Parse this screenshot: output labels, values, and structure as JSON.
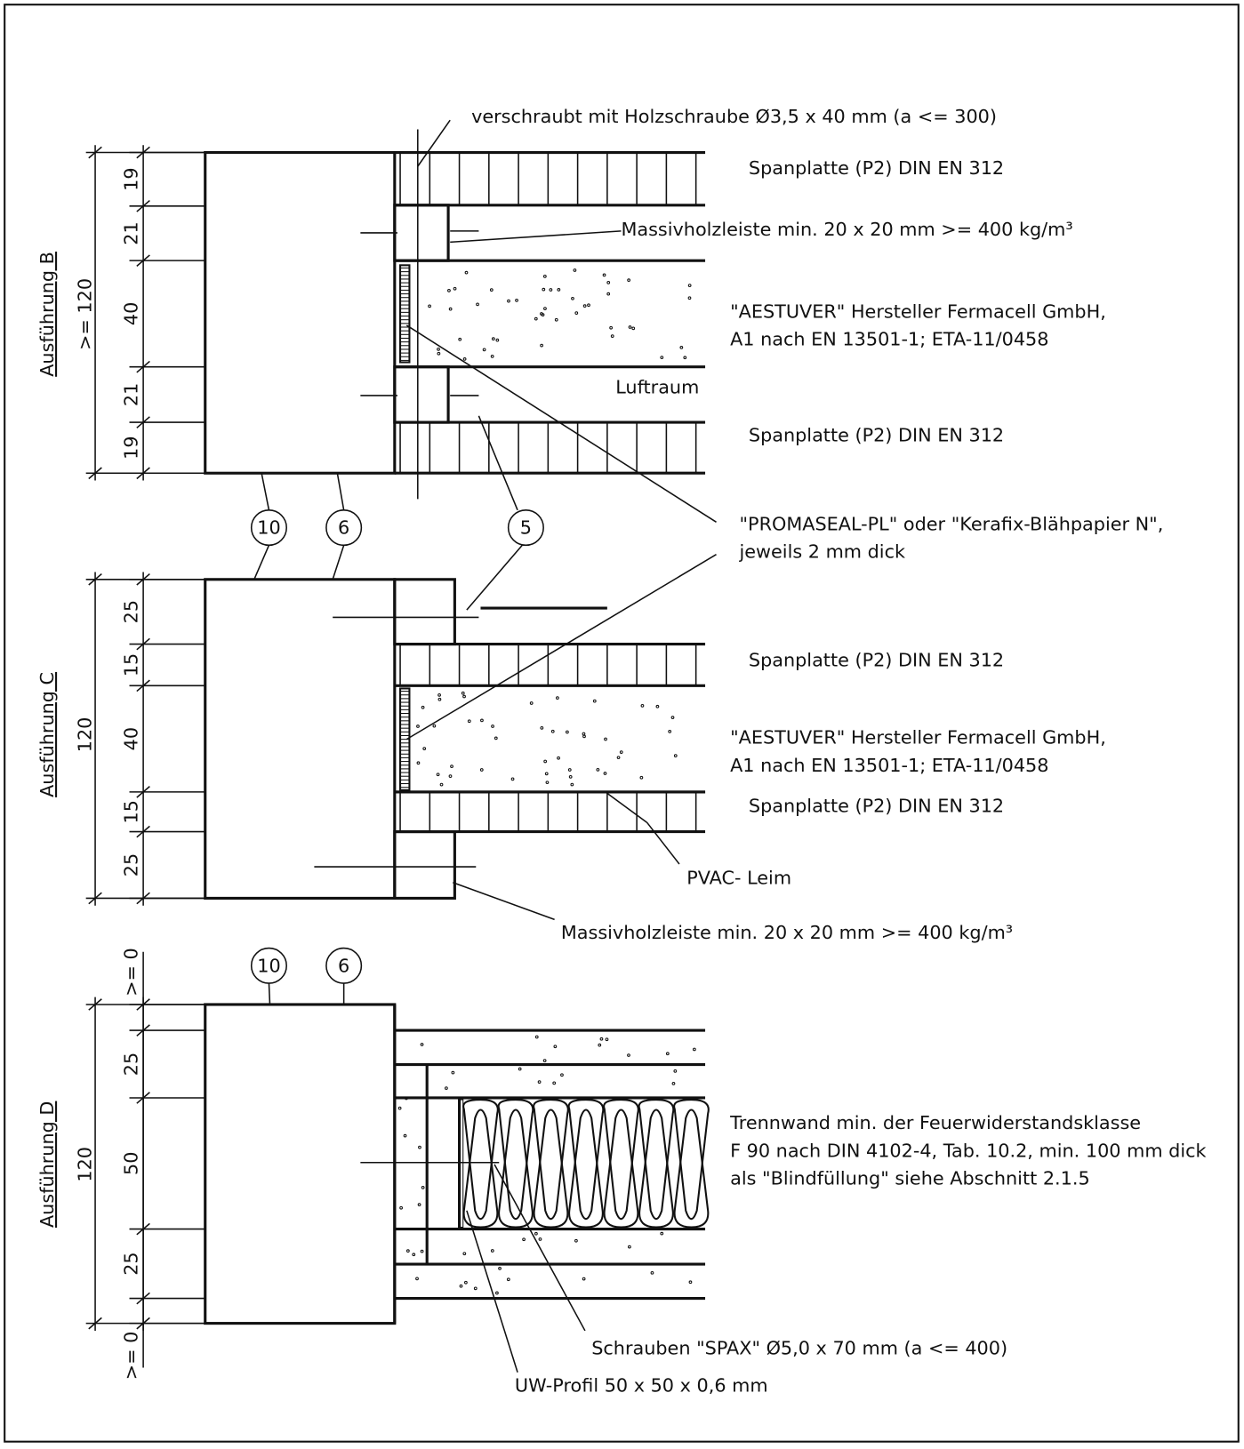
{
  "sections": [
    {
      "title": "Ausführung B",
      "overall": ">= 120",
      "dimensions": [
        "19",
        "21",
        "40",
        "21",
        "19"
      ]
    },
    {
      "title": "Ausführung C",
      "overall": "120",
      "dimensions": [
        "25",
        "15",
        "40",
        "15",
        "25"
      ]
    },
    {
      "title": "Ausführung D",
      "overall": "120",
      "dimensions": [
        ">= 0",
        "25",
        "50",
        "25",
        ">= 0"
      ]
    }
  ],
  "callouts": [
    "10",
    "6",
    "5",
    "10",
    "6"
  ],
  "annotations": [
    "verschraubt mit Holzschraube Ø3,5 x 40 mm (a <= 300)",
    "Spanplatte (P2) DIN EN 312",
    "Massivholzleiste min. 20 x 20 mm >= 400 kg/m³",
    "\"AESTUVER\" Hersteller Fermacell GmbH,",
    "A1 nach EN 13501-1; ETA-11/0458",
    "Luftraum",
    "Spanplatte (P2) DIN EN 312",
    "\"PROMASEAL-PL\" oder \"Kerafix-Blähpapier N\",",
    "jeweils 2 mm dick",
    "Spanplatte (P2) DIN EN 312",
    "\"AESTUVER\" Hersteller Fermacell GmbH,",
    "A1 nach EN 13501-1; ETA-11/0458",
    "Spanplatte (P2) DIN EN 312",
    "PVAC- Leim",
    "Massivholzleiste min. 20 x 20 mm >= 400 kg/m³",
    "Trennwand min. der Feuerwiderstandsklasse",
    "F 90 nach DIN 4102-4, Tab. 10.2, min. 100 mm dick",
    "als \"Blindfüllung\" siehe Abschnitt 2.1.5",
    "Schrauben \"SPAX\" Ø5,0 x 70 mm (a <= 400)",
    "UW-Profil 50 x 50 x 0,6 mm"
  ]
}
